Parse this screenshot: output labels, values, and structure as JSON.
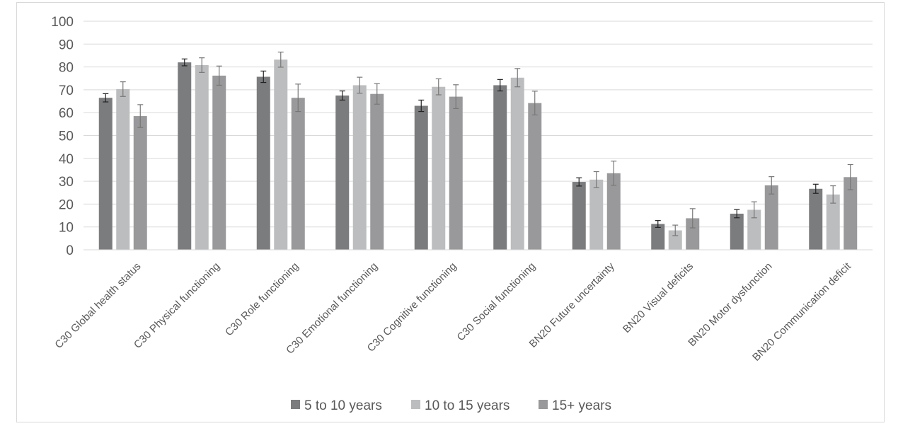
{
  "chart_data": {
    "type": "bar",
    "title": "",
    "xlabel": "",
    "ylabel": "",
    "ylim": [
      0,
      100
    ],
    "yticks": [
      0,
      10,
      20,
      30,
      40,
      50,
      60,
      70,
      80,
      90,
      100
    ],
    "grid": true,
    "legend_position": "bottom",
    "categories": [
      "C30 Global health status",
      "C30 Physical functioning",
      "C30 Role functioning",
      "C30 Emotional functioning",
      "C30 Cognitive functioning",
      "C30 Social functioning",
      "BN20 Future uncertainty",
      "BN20 Visual deficits",
      "BN20 Motor dysfunction",
      "BN20 Communication deficit"
    ],
    "series": [
      {
        "name": "5 to 10 years",
        "color": "#7b7c7e",
        "values": [
          66.5,
          82,
          75.7,
          67.5,
          63,
          72,
          29.7,
          11.3,
          15.8,
          26.7
        ],
        "error": [
          1.8,
          1.5,
          2.5,
          2.0,
          2.5,
          2.5,
          1.8,
          1.5,
          1.8,
          2.0
        ]
      },
      {
        "name": "10 to 15 years",
        "color": "#bcbdbf",
        "values": [
          70.3,
          80.8,
          83.2,
          72,
          71.3,
          75.3,
          30.7,
          8.5,
          17.5,
          24.2
        ],
        "error": [
          3.2,
          3.2,
          3.3,
          3.5,
          3.5,
          4.0,
          3.5,
          2.3,
          3.5,
          3.8
        ]
      },
      {
        "name": "15+ years",
        "color": "#99999b",
        "values": [
          58.5,
          76.2,
          66.5,
          68.2,
          67,
          64.2,
          33.5,
          13.8,
          28.2,
          31.8
        ],
        "error": [
          5.0,
          4.2,
          6.0,
          4.5,
          5.2,
          5.2,
          5.3,
          4.2,
          3.8,
          5.5
        ]
      }
    ]
  }
}
